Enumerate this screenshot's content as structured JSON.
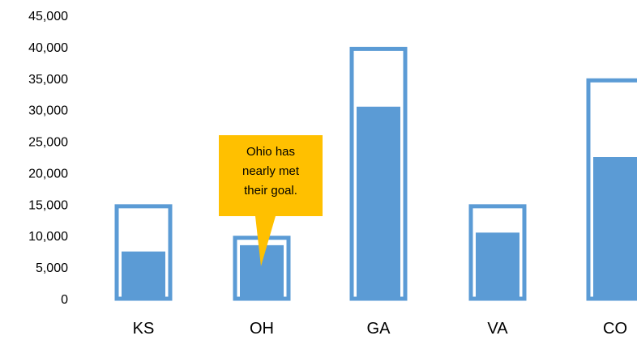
{
  "chart_data": {
    "type": "bar",
    "categories": [
      "KS",
      "OH",
      "GA",
      "VA",
      "CO"
    ],
    "series": [
      {
        "values": [
          7500,
          8500,
          30500,
          10500,
          22500
        ]
      },
      {
        "values": [
          15000,
          10000,
          40000,
          15000,
          35000
        ]
      }
    ],
    "yticks": [
      "0",
      "5,000",
      "10,000",
      "15,000",
      "20,000",
      "25,000",
      "30,000",
      "35,000",
      "40,000",
      "45,000"
    ],
    "ylim": [
      0,
      45000
    ],
    "grid": false,
    "legend": "none",
    "annotation": {
      "category": "OH",
      "lines": [
        "Ohio has",
        "nearly met",
        "their goal."
      ]
    },
    "colors": {
      "bar": "#5b9bd5",
      "outline": "#5b9bd5",
      "callout": "#ffc000"
    }
  }
}
